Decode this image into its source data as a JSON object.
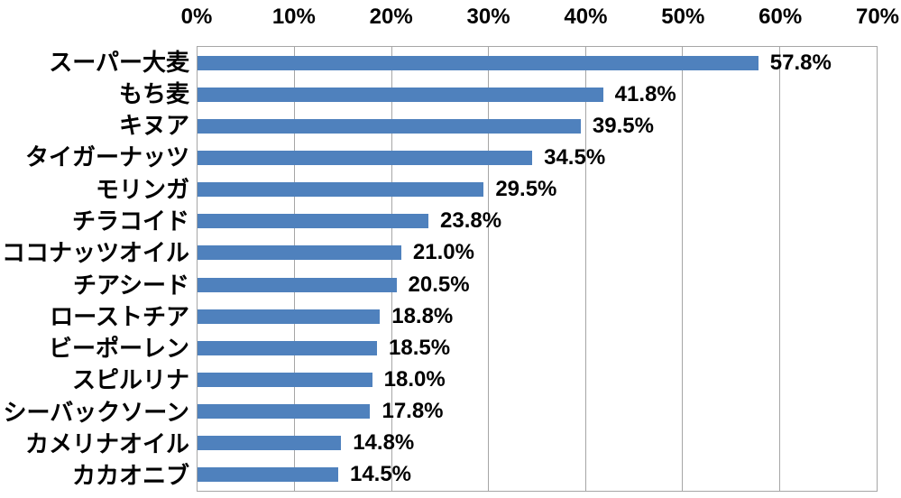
{
  "chart_data": {
    "type": "bar",
    "orientation": "horizontal",
    "title": "",
    "xlabel": "",
    "ylabel": "",
    "categories": [
      "スーパー大麦",
      "もち麦",
      "キヌア",
      "タイガーナッツ",
      "モリンガ",
      "チラコイド",
      "ココナッツオイル",
      "チアシード",
      "ローストチア",
      "ビーポーレン",
      "スピルリナ",
      "シーバックソーン",
      "カメリナオイル",
      "カカオニブ"
    ],
    "values": [
      57.8,
      41.8,
      39.5,
      34.5,
      29.5,
      23.8,
      21.0,
      20.5,
      18.8,
      18.5,
      18.0,
      17.8,
      14.8,
      14.5
    ],
    "value_labels": [
      "57.8%",
      "41.8%",
      "39.5%",
      "34.5%",
      "29.5%",
      "23.8%",
      "21.0%",
      "20.5%",
      "18.8%",
      "18.5%",
      "18.0%",
      "17.8%",
      "14.8%",
      "14.5%"
    ],
    "x_axis": {
      "position": "top",
      "min": 0,
      "max": 70,
      "step": 10,
      "ticks": [
        "0%",
        "10%",
        "20%",
        "30%",
        "40%",
        "50%",
        "60%",
        "70%"
      ]
    },
    "grid": true,
    "legend": false,
    "colors": {
      "bar": "#4F81BD",
      "gridline": "#A6A6A6",
      "text": "#000000",
      "background": "#FFFFFF"
    }
  }
}
